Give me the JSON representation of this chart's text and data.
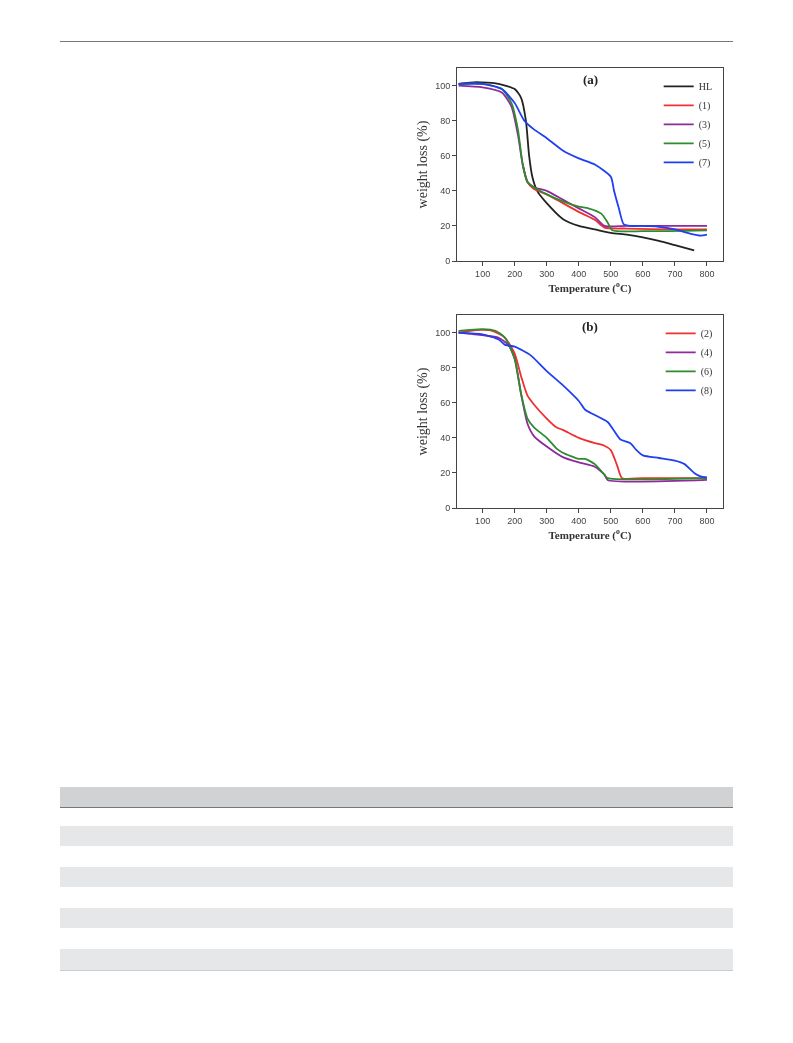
{
  "chart_data": [
    {
      "type": "line",
      "title": "(a)",
      "xlabel": "Temperature ($^{o}$C)",
      "ylabel": "weight loss (%)",
      "xlim": [
        20,
        850
      ],
      "ylim": [
        0,
        110
      ],
      "xticks": [
        100,
        200,
        300,
        400,
        500,
        600,
        700,
        800
      ],
      "yticks": [
        0,
        20,
        40,
        60,
        80,
        100
      ],
      "legend": "top right",
      "marker": "none",
      "line_style": "solid",
      "grid": false,
      "series": [
        {
          "name": "HL",
          "color": "#222222",
          "x": [
            25,
            80,
            150,
            200,
            220,
            235,
            245,
            255,
            270,
            300,
            350,
            400,
            450,
            500,
            550,
            600,
            650,
            700,
            760
          ],
          "values": [
            101,
            102,
            101,
            98,
            93,
            80,
            60,
            48,
            40,
            33,
            24,
            20,
            18,
            16,
            15,
            13.5,
            11.5,
            9,
            6
          ]
        },
        {
          "name": "(1)",
          "color": "#f03030",
          "x": [
            225,
            240,
            260,
            300,
            350,
            400,
            450,
            480,
            550,
            700,
            800
          ],
          "values": [
            55,
            45,
            41,
            38,
            33,
            28,
            23.5,
            19,
            18.5,
            18,
            18
          ]
        },
        {
          "name": "(3)",
          "color": "#8e2a9c",
          "x": [
            25,
            100,
            160,
            190,
            210,
            225,
            240,
            260,
            300,
            350,
            400,
            450,
            480,
            550,
            700,
            800
          ],
          "values": [
            100,
            99,
            96,
            88,
            72,
            55,
            45,
            42,
            40,
            35,
            30,
            25,
            20,
            20,
            20,
            20
          ]
        },
        {
          "name": "(5)",
          "color": "#2e8b2e",
          "x": [
            25,
            100,
            160,
            190,
            210,
            225,
            240,
            260,
            300,
            350,
            400,
            430,
            470,
            490,
            505,
            600,
            800
          ],
          "values": [
            101,
            101,
            98,
            90,
            75,
            55,
            45,
            42,
            38,
            34,
            31,
            30,
            27,
            22,
            17.5,
            17,
            17.5
          ]
        },
        {
          "name": "(7)",
          "color": "#1f3ff0",
          "x": [
            25,
            100,
            160,
            200,
            230,
            260,
            300,
            350,
            400,
            450,
            500,
            510,
            525,
            540,
            560,
            600,
            650,
            700,
            750,
            780,
            800
          ],
          "values": [
            101,
            101,
            98,
            90,
            80,
            75,
            70,
            63,
            58.5,
            55,
            48,
            40,
            30,
            21,
            20,
            20,
            19.5,
            18,
            15.5,
            14.5,
            15
          ]
        }
      ]
    },
    {
      "type": "line",
      "title": "(b)",
      "xlabel": "Temperature ($^{o}$C)",
      "ylabel": "weight loss (%)",
      "xlim": [
        20,
        850
      ],
      "ylim": [
        0,
        110
      ],
      "xticks": [
        100,
        200,
        300,
        400,
        500,
        600,
        700,
        800
      ],
      "yticks": [
        0,
        20,
        40,
        60,
        80,
        100
      ],
      "legend": "top right",
      "marker": "none",
      "line_style": "solid",
      "grid": false,
      "series": [
        {
          "name": "(2)",
          "color": "#f03030",
          "x": [
            25,
            90,
            130,
            170,
            200,
            220,
            240,
            260,
            300,
            330,
            350,
            400,
            450,
            480,
            500,
            520,
            535,
            600,
            800
          ],
          "values": [
            100,
            101.5,
            101,
            97,
            88,
            75,
            64,
            59,
            51,
            46,
            44.5,
            40,
            37,
            35.5,
            33,
            24,
            17,
            17,
            17
          ]
        },
        {
          "name": "(4)",
          "color": "#8e2a9c",
          "x": [
            25,
            100,
            150,
            180,
            200,
            220,
            240,
            260,
            300,
            350,
            400,
            450,
            480,
            490,
            800
          ],
          "values": [
            100,
            98.5,
            97,
            93,
            85,
            65,
            48,
            41,
            35,
            29,
            26,
            23.5,
            19,
            16,
            16
          ]
        },
        {
          "name": "(6)",
          "color": "#2e8b2e",
          "x": [
            25,
            100,
            140,
            170,
            200,
            220,
            240,
            260,
            300,
            330,
            350,
            400,
            420,
            450,
            480,
            490,
            800
          ],
          "values": [
            101,
            102,
            101,
            97,
            85,
            65,
            51,
            46,
            40,
            34,
            31.5,
            28,
            28,
            25,
            19,
            17,
            17
          ]
        },
        {
          "name": "(8)",
          "color": "#1f3ff0",
          "x": [
            25,
            100,
            150,
            170,
            200,
            250,
            300,
            350,
            400,
            420,
            450,
            490,
            510,
            530,
            560,
            580,
            600,
            650,
            700,
            730,
            760,
            780,
            800
          ],
          "values": [
            100,
            99,
            96,
            93,
            92,
            87,
            78,
            70,
            61,
            56,
            53,
            49,
            44,
            39,
            37,
            33,
            30,
            28.5,
            27,
            25,
            20,
            18,
            17.5
          ]
        }
      ]
    }
  ]
}
